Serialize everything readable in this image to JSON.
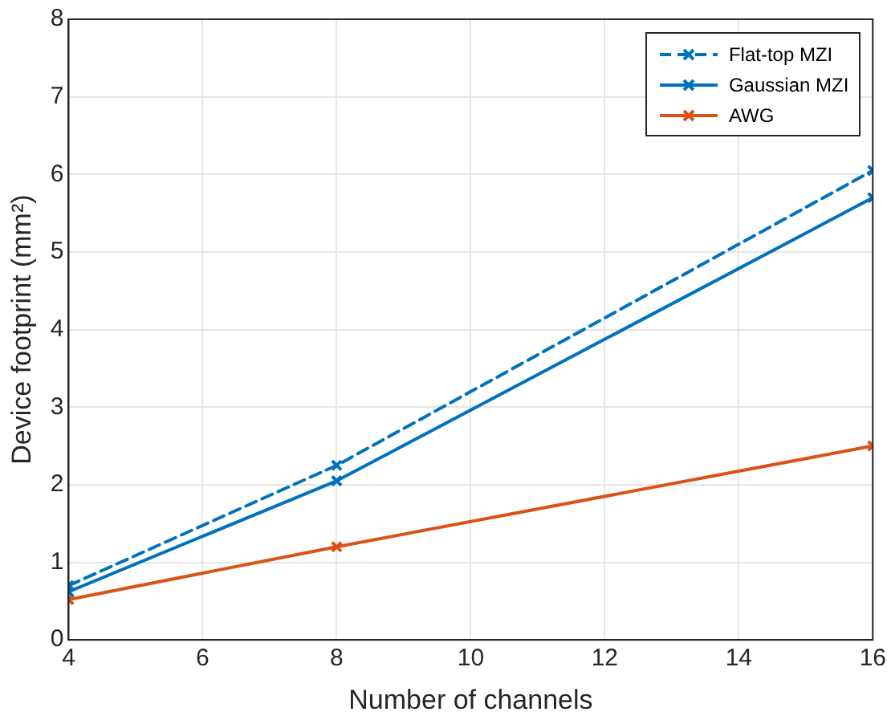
{
  "chart_data": {
    "type": "line",
    "xlabel": "Number of channels",
    "ylabel": "Device footprint (mm²)",
    "x": [
      4,
      8,
      16
    ],
    "series": [
      {
        "name": "Flat-top MZI",
        "color": "#0072bd",
        "values": [
          0.7,
          2.25,
          6.05
        ],
        "line_style": "dashed",
        "marker": "cross"
      },
      {
        "name": "Gaussian MZI",
        "color": "#0072bd",
        "values": [
          0.62,
          2.05,
          5.7
        ],
        "line_style": "solid",
        "marker": "cross"
      },
      {
        "name": "AWG",
        "color": "#d95319",
        "values": [
          0.52,
          1.2,
          2.5
        ],
        "line_style": "solid",
        "marker": "cross"
      }
    ],
    "xlim": [
      4,
      16
    ],
    "xticks": [
      4,
      6,
      8,
      10,
      12,
      14,
      16
    ],
    "ylim": [
      0,
      8
    ],
    "yticks": [
      0,
      1,
      2,
      3,
      4,
      5,
      6,
      7,
      8
    ],
    "grid": true,
    "legend": "top right"
  }
}
